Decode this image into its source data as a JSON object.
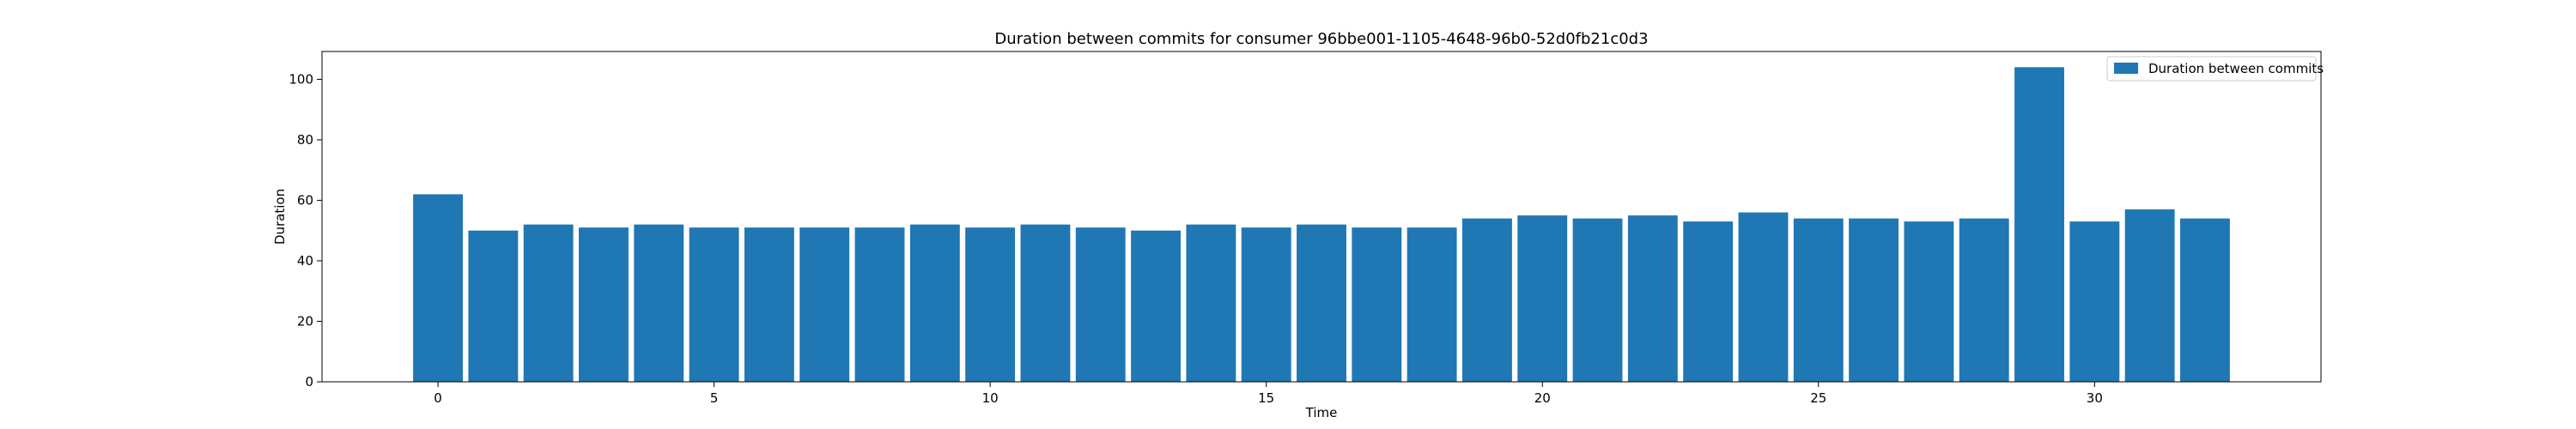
{
  "chart_data": {
    "type": "bar",
    "title": "Duration between commits for consumer 96bbe001-1105-4648-96b0-52d0fb21c0d3",
    "xlabel": "Time",
    "ylabel": "Duration",
    "legend": {
      "label": "Duration between commits",
      "placement": "top-right"
    },
    "grid": false,
    "bar_color": "#1f77b4",
    "xlim": [
      -2.1,
      34.1
    ],
    "ylim": [
      0,
      109.2
    ],
    "x_ticks": [
      0,
      5,
      10,
      15,
      20,
      25,
      30
    ],
    "y_ticks": [
      0,
      20,
      40,
      60,
      80,
      100
    ],
    "x": [
      0,
      1,
      2,
      3,
      4,
      5,
      6,
      7,
      8,
      9,
      10,
      11,
      12,
      13,
      14,
      15,
      16,
      17,
      18,
      19,
      20,
      21,
      22,
      23,
      24,
      25,
      26,
      27,
      28,
      29,
      30,
      31,
      32
    ],
    "values": [
      62,
      50,
      52,
      51,
      52,
      51,
      51,
      51,
      51,
      52,
      51,
      52,
      51,
      50,
      52,
      51,
      52,
      51,
      51,
      54,
      55,
      54,
      55,
      53,
      56,
      54,
      54,
      53,
      54,
      104,
      53,
      57,
      54
    ]
  }
}
